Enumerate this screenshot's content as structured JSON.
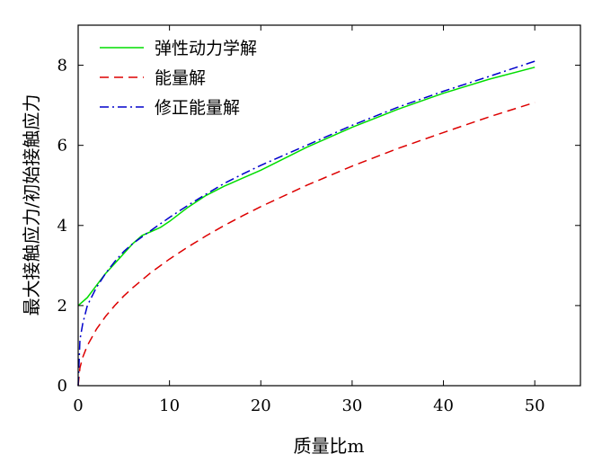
{
  "chart_data": {
    "type": "line",
    "xlabel": "质量比m",
    "ylabel": "最大接触应力/初始接触应力",
    "xlim": [
      0,
      55
    ],
    "ylim": [
      0,
      9
    ],
    "xticks": [
      0,
      10,
      20,
      30,
      40,
      50
    ],
    "yticks": [
      0,
      2,
      4,
      6,
      8
    ],
    "grid": false,
    "legend_position": "top-left",
    "series": [
      {
        "name": "弹性动力学解",
        "color": "#00dd00",
        "dash": "solid",
        "x": [
          0,
          1,
          2,
          3,
          4,
          5,
          6,
          7,
          8,
          9,
          10,
          12,
          14,
          16,
          18,
          20,
          25,
          30,
          35,
          40,
          45,
          50
        ],
        "y": [
          2.0,
          2.2,
          2.5,
          2.8,
          3.05,
          3.3,
          3.55,
          3.75,
          3.85,
          3.95,
          4.1,
          4.45,
          4.75,
          4.98,
          5.18,
          5.38,
          5.95,
          6.45,
          6.9,
          7.3,
          7.65,
          7.95
        ]
      },
      {
        "name": "能量解",
        "color": "#dd0000",
        "dash": "10,6",
        "x": [
          0,
          0.2,
          0.5,
          1,
          2,
          3,
          4,
          5,
          6,
          8,
          10,
          12,
          14,
          16,
          18,
          20,
          25,
          30,
          35,
          40,
          45,
          50
        ],
        "y": [
          0,
          0.45,
          0.71,
          1.0,
          1.41,
          1.73,
          2.0,
          2.24,
          2.45,
          2.83,
          3.16,
          3.46,
          3.74,
          4.0,
          4.24,
          4.47,
          5.0,
          5.48,
          5.92,
          6.32,
          6.71,
          7.07
        ]
      },
      {
        "name": "修正能量解",
        "color": "#0000cc",
        "dash": "10,4,2,4",
        "x": [
          0,
          0.2,
          0.5,
          1,
          2,
          3,
          4,
          5,
          6,
          8,
          10,
          12,
          14,
          16,
          18,
          20,
          25,
          30,
          35,
          40,
          45,
          50
        ],
        "y": [
          0,
          1.15,
          1.55,
          2.0,
          2.45,
          2.8,
          3.1,
          3.35,
          3.55,
          3.88,
          4.2,
          4.5,
          4.78,
          5.05,
          5.28,
          5.5,
          6.0,
          6.5,
          6.95,
          7.35,
          7.72,
          8.1
        ]
      }
    ]
  }
}
